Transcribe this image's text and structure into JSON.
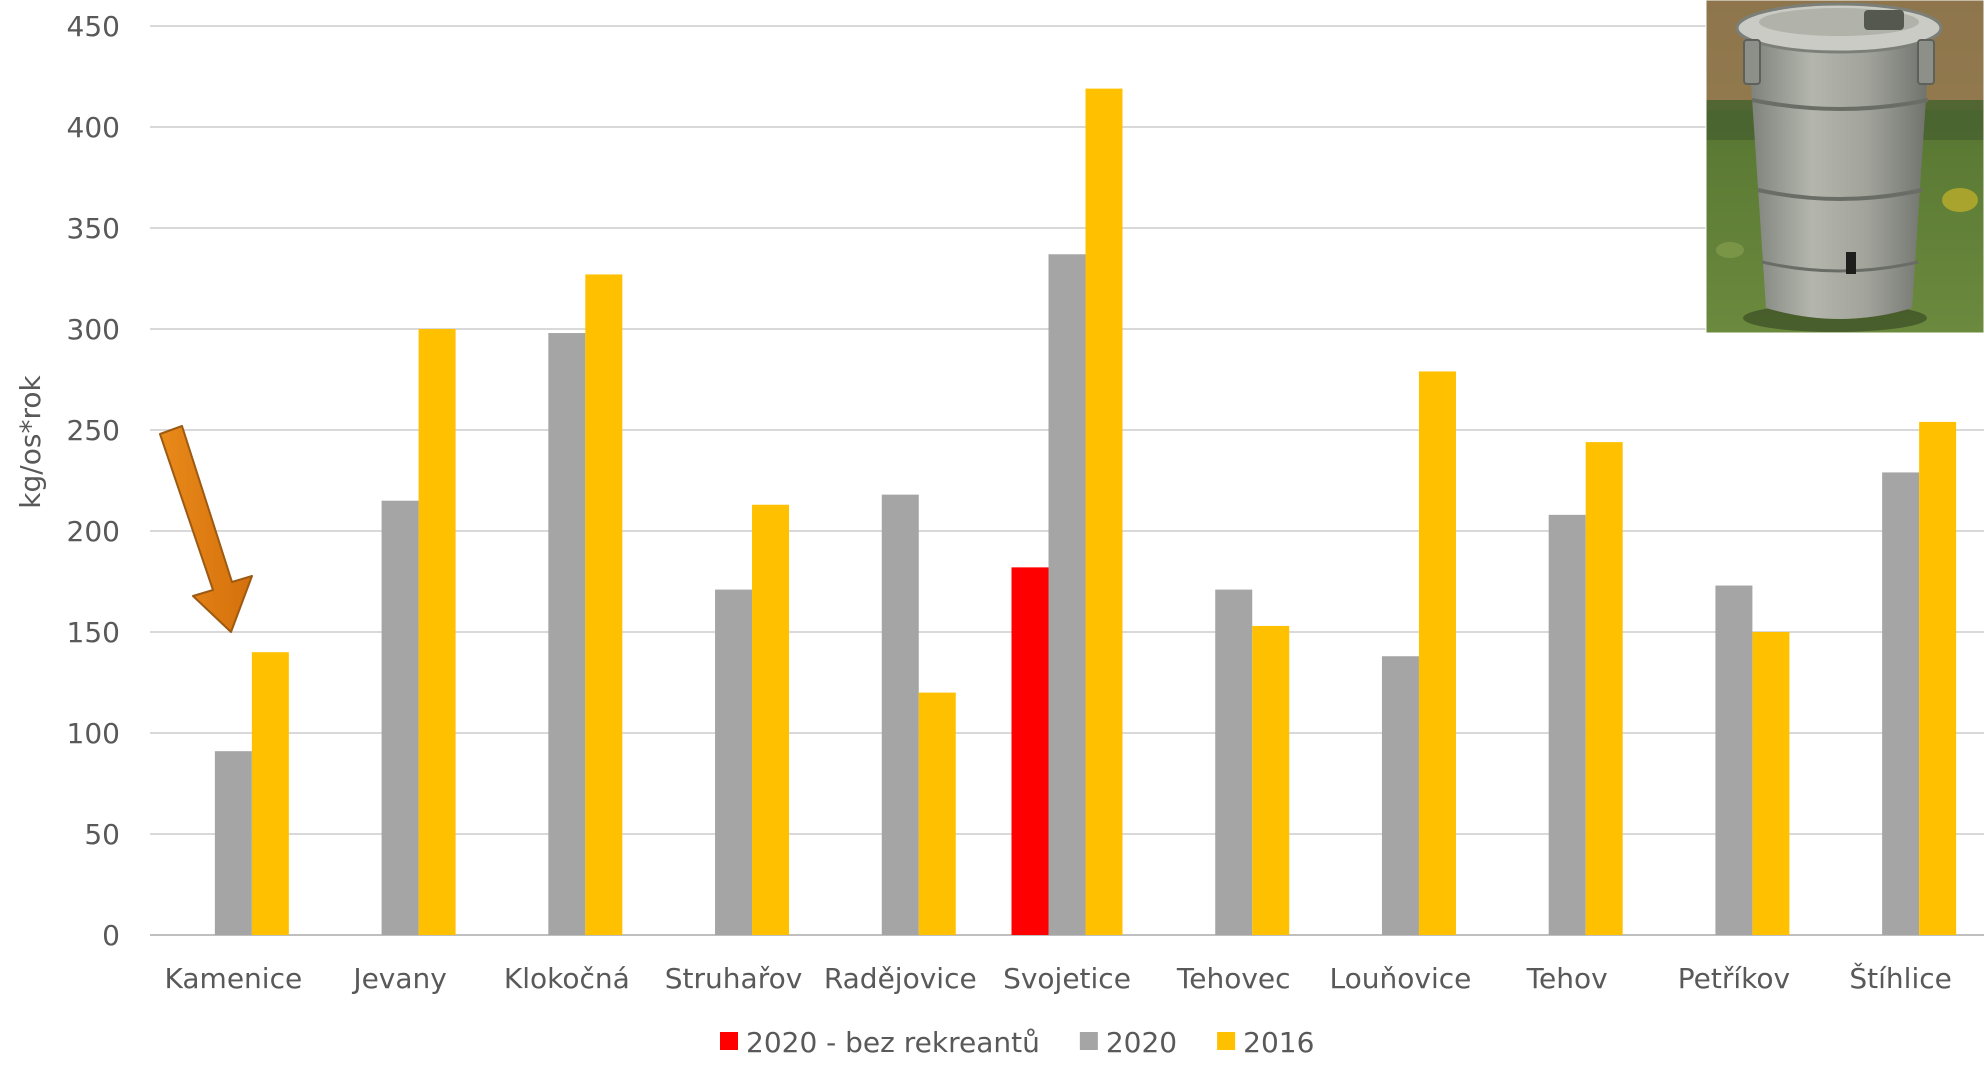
{
  "chart_data": {
    "type": "bar",
    "ylabel": "kg/os*rok",
    "ylim": [
      0,
      450
    ],
    "yticks": [
      0,
      50,
      100,
      150,
      200,
      250,
      300,
      350,
      400,
      450
    ],
    "grid": true,
    "legend_position": "bottom",
    "categories": [
      "Kamenice",
      "Jevany",
      "Klokočná",
      "Struhařov",
      "Radějovice",
      "Svojetice",
      "Tehovec",
      "Louňovice",
      "Tehov",
      "Petříkov",
      "Štíhlice"
    ],
    "series": [
      {
        "name": "2020 - bez rekreantů",
        "color": "#ff0000",
        "values": [
          null,
          null,
          null,
          null,
          null,
          182,
          null,
          null,
          null,
          null,
          null
        ]
      },
      {
        "name": "2020",
        "color": "#a5a5a5",
        "values": [
          91,
          215,
          298,
          171,
          218,
          337,
          171,
          138,
          208,
          173,
          229
        ]
      },
      {
        "name": "2016",
        "color": "#ffc000",
        "values": [
          140,
          300,
          327,
          213,
          120,
          419,
          153,
          279,
          244,
          150,
          254
        ]
      }
    ],
    "annotations": [
      {
        "type": "arrow",
        "color": "#e36c09",
        "target_category": "Kamenice"
      },
      {
        "type": "photo",
        "subject": "galvanized-trash-can"
      }
    ]
  }
}
